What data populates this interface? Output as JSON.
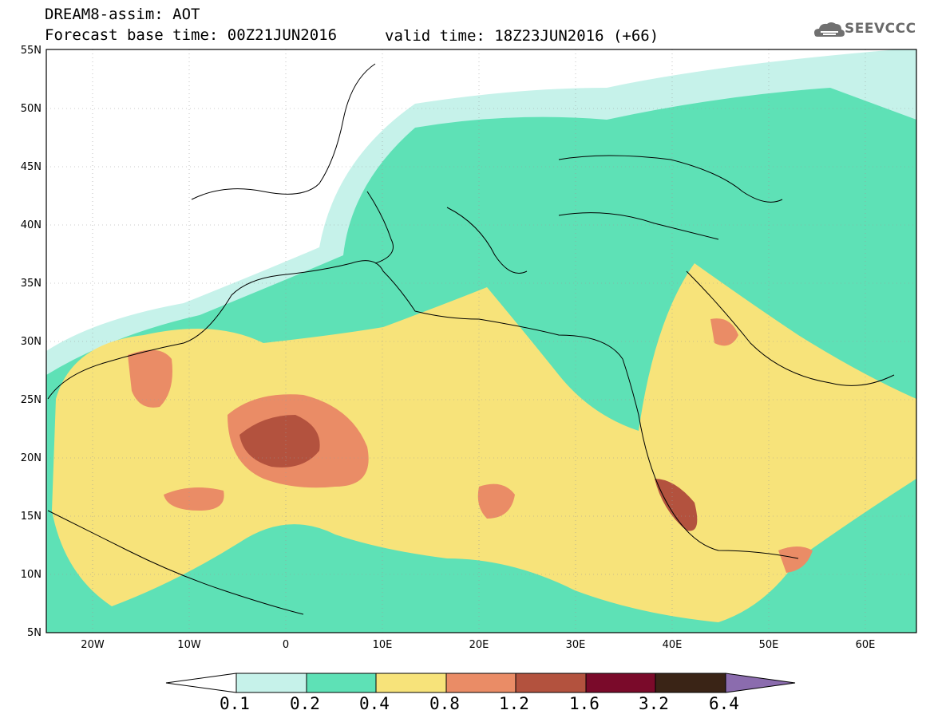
{
  "header": {
    "line1": "DREAM8-assim: AOT",
    "line2": "Forecast base time: 00Z21JUN2016",
    "valid": "valid time: 18Z23JUN2016 (+66)",
    "logo_text": "SEEVCCC"
  },
  "map": {
    "lat_labels": [
      "55N",
      "50N",
      "45N",
      "40N",
      "35N",
      "30N",
      "25N",
      "20N",
      "15N",
      "10N",
      "5N"
    ],
    "lon_labels": [
      "20W",
      "10W",
      "0",
      "10E",
      "20E",
      "30E",
      "40E",
      "50E",
      "60E"
    ]
  },
  "colorbar": {
    "labels": [
      "0.1",
      "0.2",
      "0.4",
      "0.8",
      "1.2",
      "1.6",
      "3.2",
      "6.4"
    ],
    "colors": [
      "#c6f2ea",
      "#5ee1b6",
      "#f7e37a",
      "#ea8c66",
      "#b3523e",
      "#7a0a2a",
      "#3a2416",
      "#8b6cae"
    ]
  }
}
